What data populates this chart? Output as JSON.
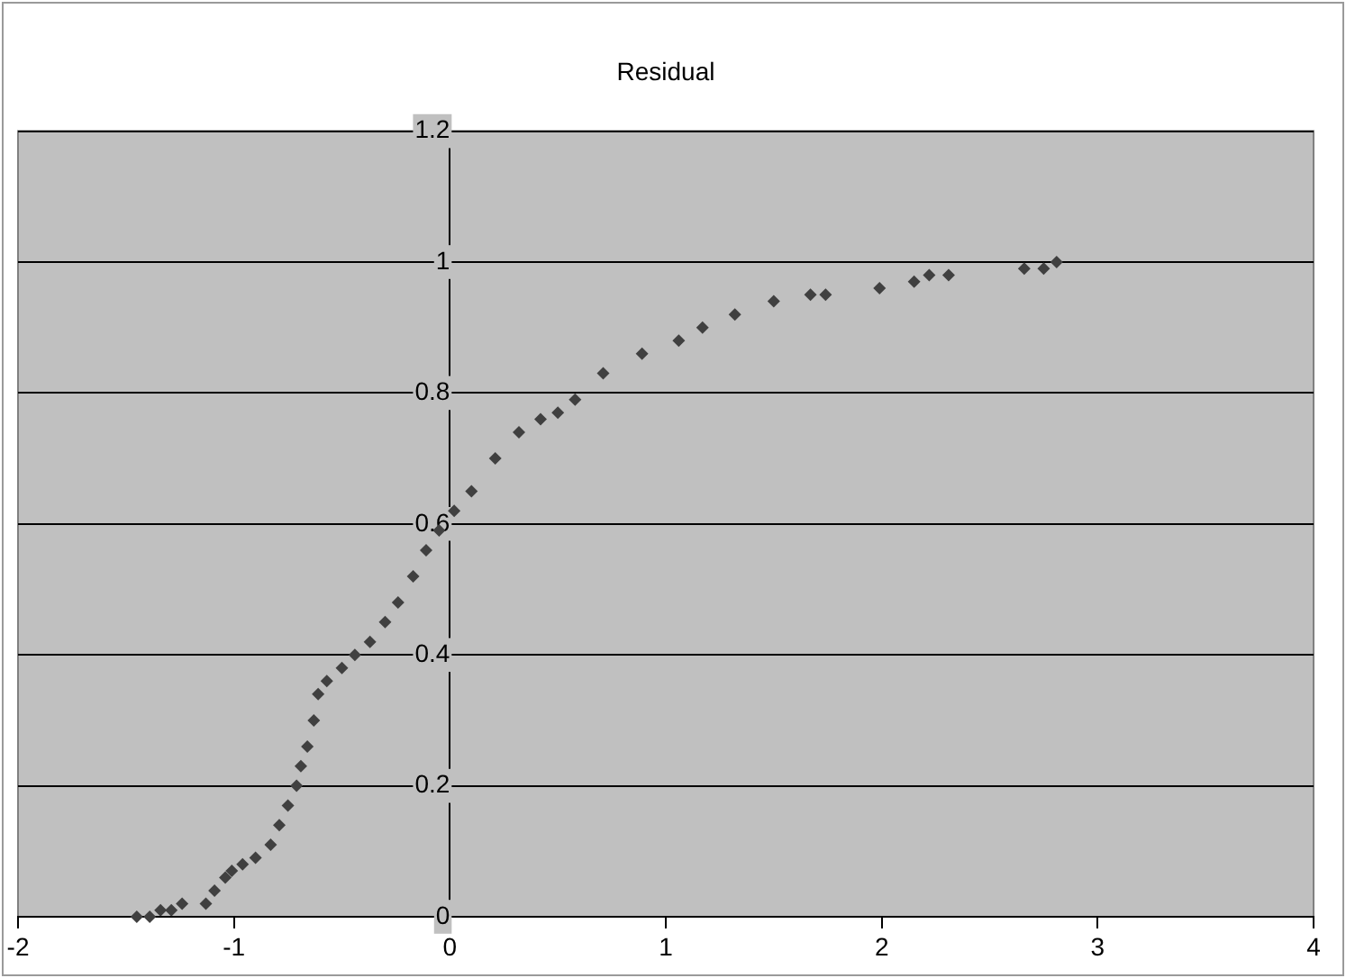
{
  "chart_data": {
    "type": "scatter",
    "title": "Residual",
    "x": [
      -1.45,
      -1.39,
      -1.34,
      -1.29,
      -1.24,
      -1.13,
      -1.09,
      -1.04,
      -1.01,
      -0.96,
      -0.9,
      -0.83,
      -0.79,
      -0.75,
      -0.71,
      -0.69,
      -0.66,
      -0.63,
      -0.61,
      -0.57,
      -0.5,
      -0.44,
      -0.37,
      -0.3,
      -0.24,
      -0.17,
      -0.11,
      -0.05,
      0.02,
      0.1,
      0.21,
      0.32,
      0.42,
      0.5,
      0.58,
      0.71,
      0.89,
      1.06,
      1.17,
      1.32,
      1.5,
      1.67,
      1.74,
      1.99,
      2.15,
      2.22,
      2.31,
      2.66,
      2.75,
      2.81
    ],
    "series": [
      {
        "color": "#404040",
        "values": [
          0,
          0,
          0.01,
          0.01,
          0.02,
          0.02,
          0.04,
          0.06,
          0.07,
          0.08,
          0.09,
          0.11,
          0.14,
          0.17,
          0.2,
          0.23,
          0.26,
          0.3,
          0.34,
          0.36,
          0.38,
          0.4,
          0.42,
          0.45,
          0.48,
          0.52,
          0.56,
          0.59,
          0.62,
          0.65,
          0.7,
          0.74,
          0.76,
          0.77,
          0.79,
          0.83,
          0.86,
          0.88,
          0.9,
          0.92,
          0.94,
          0.95,
          0.95,
          0.96,
          0.97,
          0.98,
          0.98,
          0.99,
          0.99,
          1
        ]
      }
    ],
    "xlim": [
      -2,
      4
    ],
    "xticks": [
      -2,
      -1,
      0,
      1,
      2,
      3,
      4
    ],
    "ylim": [
      0,
      1.2
    ],
    "yticks": [
      0,
      0.2,
      0.4,
      0.6,
      0.8,
      1,
      1.2
    ],
    "grid": "y",
    "legend": false,
    "marker": "diamond"
  }
}
